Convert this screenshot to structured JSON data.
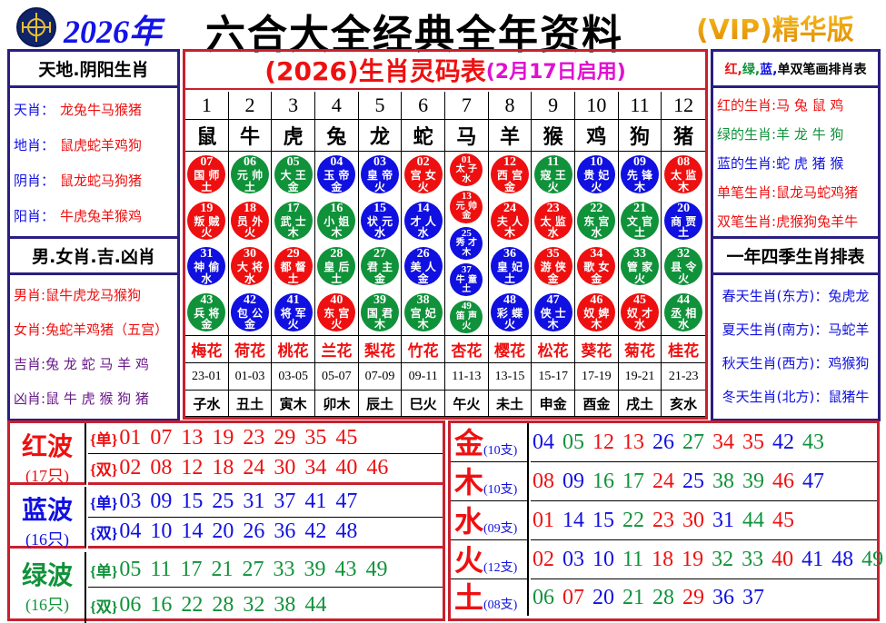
{
  "colors": {
    "red": "#ee1010",
    "blue": "#1010e0",
    "green": "#10923a",
    "purple": "#6a1a8a"
  },
  "header": {
    "year": "2026年",
    "title": "六合大全经典全年资料",
    "edition": "(VIP)精华版",
    "logo_icon": "hk-jockey-club-emblem"
  },
  "left": {
    "head1": "天地.阴阳生肖",
    "rows1": [
      {
        "k": "天肖：",
        "v": "龙兔牛马猴猪"
      },
      {
        "k": "地肖：",
        "v": "鼠虎蛇羊鸡狗"
      },
      {
        "k": "阴肖：",
        "v": "鼠龙蛇马狗猪"
      },
      {
        "k": "阳肖：",
        "v": "牛虎兔羊猴鸡"
      }
    ],
    "head2": "男.女肖.吉.凶肖",
    "rows2": [
      {
        "k": "男肖:",
        "v": "鼠牛虎龙马猴狗",
        "c": "red"
      },
      {
        "k": "女肖:",
        "v": "兔蛇羊鸡猪（五宫）",
        "c": "red"
      },
      {
        "k": "吉肖:",
        "v": "兔 龙 蛇 马 羊 鸡",
        "c": "purple"
      },
      {
        "k": "凶肖:",
        "v": "鼠 牛 虎 猴 狗 猪",
        "c": "purple"
      }
    ]
  },
  "right": {
    "head1": [
      {
        "t": "红,",
        "c": "red"
      },
      {
        "t": "绿,",
        "c": "green"
      },
      {
        "t": "蓝,",
        "c": "blue"
      },
      {
        "t": "单双笔画排肖表",
        "c": "black"
      }
    ],
    "rows1": [
      {
        "k": "红的生肖:",
        "v": "马 兔 鼠 鸡",
        "c": "red"
      },
      {
        "k": "绿的生肖:",
        "v": "羊 龙 牛 狗",
        "c": "green"
      },
      {
        "k": "蓝的生肖:",
        "v": "蛇 虎 猪 猴",
        "c": "blue"
      },
      {
        "k": "单笔生肖:",
        "v": "鼠龙马蛇鸡猪",
        "c": "red"
      },
      {
        "k": "双笔生肖:",
        "v": "虎猴狗兔羊牛",
        "c": "red"
      }
    ],
    "head2": "一年四季生肖排表",
    "rows2": [
      "春天生肖(东方)：兔虎龙",
      "夏天生肖(南方)：马蛇羊",
      "秋天生肖(西方)：鸡猴狗",
      "冬天生肖(北方)：鼠猪牛"
    ]
  },
  "center": {
    "title": "(2026)生肖灵码表",
    "subtitle": "(2月17日启用)",
    "columns": [
      {
        "n": "1",
        "z": "鼠",
        "f": "梅花",
        "t": "23-01",
        "b": "子水",
        "balls": [
          [
            "07",
            "国师",
            "土"
          ],
          [
            "19",
            "叛贼",
            "火"
          ],
          [
            "31",
            "神偷",
            "水"
          ],
          [
            "43",
            "兵将",
            "金"
          ]
        ]
      },
      {
        "n": "2",
        "z": "牛",
        "f": "荷花",
        "t": "01-03",
        "b": "丑土",
        "balls": [
          [
            "06",
            "元帅",
            "土"
          ],
          [
            "18",
            "员外",
            "火"
          ],
          [
            "30",
            "大将",
            "水"
          ],
          [
            "42",
            "包公",
            "金"
          ]
        ]
      },
      {
        "n": "3",
        "z": "虎",
        "f": "桃花",
        "t": "03-05",
        "b": "寅木",
        "balls": [
          [
            "05",
            "大王",
            "金"
          ],
          [
            "17",
            "武士",
            "木"
          ],
          [
            "29",
            "都督",
            "土"
          ],
          [
            "41",
            "将军",
            "火"
          ]
        ]
      },
      {
        "n": "4",
        "z": "兔",
        "f": "兰花",
        "t": "05-07",
        "b": "卯木",
        "balls": [
          [
            "04",
            "玉帝",
            "金"
          ],
          [
            "16",
            "小姐",
            "木"
          ],
          [
            "28",
            "皇后",
            "土"
          ],
          [
            "40",
            "东宫",
            "火"
          ]
        ]
      },
      {
        "n": "5",
        "z": "龙",
        "f": "梨花",
        "t": "07-09",
        "b": "辰土",
        "balls": [
          [
            "03",
            "皇帝",
            "火"
          ],
          [
            "15",
            "状元",
            "水"
          ],
          [
            "27",
            "君主",
            "金"
          ],
          [
            "39",
            "国君",
            "木"
          ]
        ]
      },
      {
        "n": "6",
        "z": "蛇",
        "f": "竹花",
        "t": "09-11",
        "b": "巳火",
        "balls": [
          [
            "02",
            "宫女",
            "火"
          ],
          [
            "14",
            "才人",
            "水"
          ],
          [
            "26",
            "美人",
            "金"
          ],
          [
            "38",
            "宫妃",
            "木"
          ]
        ]
      },
      {
        "n": "7",
        "z": "马",
        "f": "杏花",
        "t": "11-13",
        "b": "午火",
        "balls": [
          [
            "01",
            "太子",
            "水"
          ],
          [
            "13",
            "元帅",
            "金"
          ],
          [
            "25",
            "秀才",
            "木"
          ],
          [
            "37",
            "牛童",
            "土"
          ],
          [
            "49",
            "笛声",
            "火"
          ]
        ]
      },
      {
        "n": "8",
        "z": "羊",
        "f": "樱花",
        "t": "13-15",
        "b": "未土",
        "balls": [
          [
            "12",
            "西宫",
            "金"
          ],
          [
            "24",
            "夫人",
            "木"
          ],
          [
            "36",
            "皇妃",
            "土"
          ],
          [
            "48",
            "彩蝶",
            "火"
          ]
        ]
      },
      {
        "n": "9",
        "z": "猴",
        "f": "松花",
        "t": "15-17",
        "b": "申金",
        "balls": [
          [
            "11",
            "寇王",
            "火"
          ],
          [
            "23",
            "太监",
            "水"
          ],
          [
            "35",
            "游侠",
            "金"
          ],
          [
            "47",
            "侠士",
            "木"
          ]
        ]
      },
      {
        "n": "10",
        "z": "鸡",
        "f": "葵花",
        "t": "17-19",
        "b": "酉金",
        "balls": [
          [
            "10",
            "贵妃",
            "火"
          ],
          [
            "22",
            "东宫",
            "水"
          ],
          [
            "34",
            "歌女",
            "金"
          ],
          [
            "46",
            "奴婢",
            "木"
          ]
        ]
      },
      {
        "n": "11",
        "z": "狗",
        "f": "菊花",
        "t": "19-21",
        "b": "戌土",
        "balls": [
          [
            "09",
            "先锋",
            "木"
          ],
          [
            "21",
            "文官",
            "土"
          ],
          [
            "33",
            "管家",
            "火"
          ],
          [
            "45",
            "奴才",
            "水"
          ]
        ]
      },
      {
        "n": "12",
        "z": "猪",
        "f": "桂花",
        "t": "21-23",
        "b": "亥水",
        "balls": [
          [
            "08",
            "太监",
            "木"
          ],
          [
            "20",
            "商贾",
            "土"
          ],
          [
            "32",
            "县令",
            "火"
          ],
          [
            "44",
            "丞相",
            "水"
          ]
        ]
      }
    ]
  },
  "waves": [
    {
      "name": "红波",
      "count": "(17只)",
      "c": "red",
      "single": "{单}",
      "double": "{双}",
      "odd": [
        "01",
        "07",
        "13",
        "19",
        "23",
        "29",
        "35",
        "45"
      ],
      "even": [
        "02",
        "08",
        "12",
        "18",
        "24",
        "30",
        "34",
        "40",
        "46"
      ]
    },
    {
      "name": "蓝波",
      "count": "(16只)",
      "c": "blue",
      "single": "{单}",
      "double": "{双}",
      "odd": [
        "03",
        "09",
        "15",
        "25",
        "31",
        "37",
        "41",
        "47"
      ],
      "even": [
        "04",
        "10",
        "14",
        "20",
        "26",
        "36",
        "42",
        "48"
      ]
    },
    {
      "name": "绿波",
      "count": "(16只)",
      "c": "green",
      "single": "{单}",
      "double": "{双}",
      "odd": [
        "05",
        "11",
        "17",
        "21",
        "27",
        "33",
        "39",
        "43",
        "49"
      ],
      "even": [
        "06",
        "16",
        "22",
        "28",
        "32",
        "38",
        "44"
      ]
    }
  ],
  "elements": [
    {
      "name": "金",
      "count": "(10支)",
      "nums": [
        "04",
        "05",
        "12",
        "13",
        "26",
        "27",
        "34",
        "35",
        "42",
        "43"
      ]
    },
    {
      "name": "木",
      "count": "(10支)",
      "nums": [
        "08",
        "09",
        "16",
        "17",
        "24",
        "25",
        "38",
        "39",
        "46",
        "47"
      ]
    },
    {
      "name": "水",
      "count": "(09支)",
      "nums": [
        "01",
        "14",
        "15",
        "22",
        "23",
        "30",
        "31",
        "44",
        "45"
      ]
    },
    {
      "name": "火",
      "count": "(12支)",
      "nums": [
        "02",
        "03",
        "10",
        "11",
        "18",
        "19",
        "32",
        "33",
        "40",
        "41",
        "48",
        "49"
      ]
    },
    {
      "name": "土",
      "count": "(08支)",
      "nums": [
        "06",
        "07",
        "20",
        "21",
        "28",
        "29",
        "36",
        "37"
      ]
    }
  ]
}
